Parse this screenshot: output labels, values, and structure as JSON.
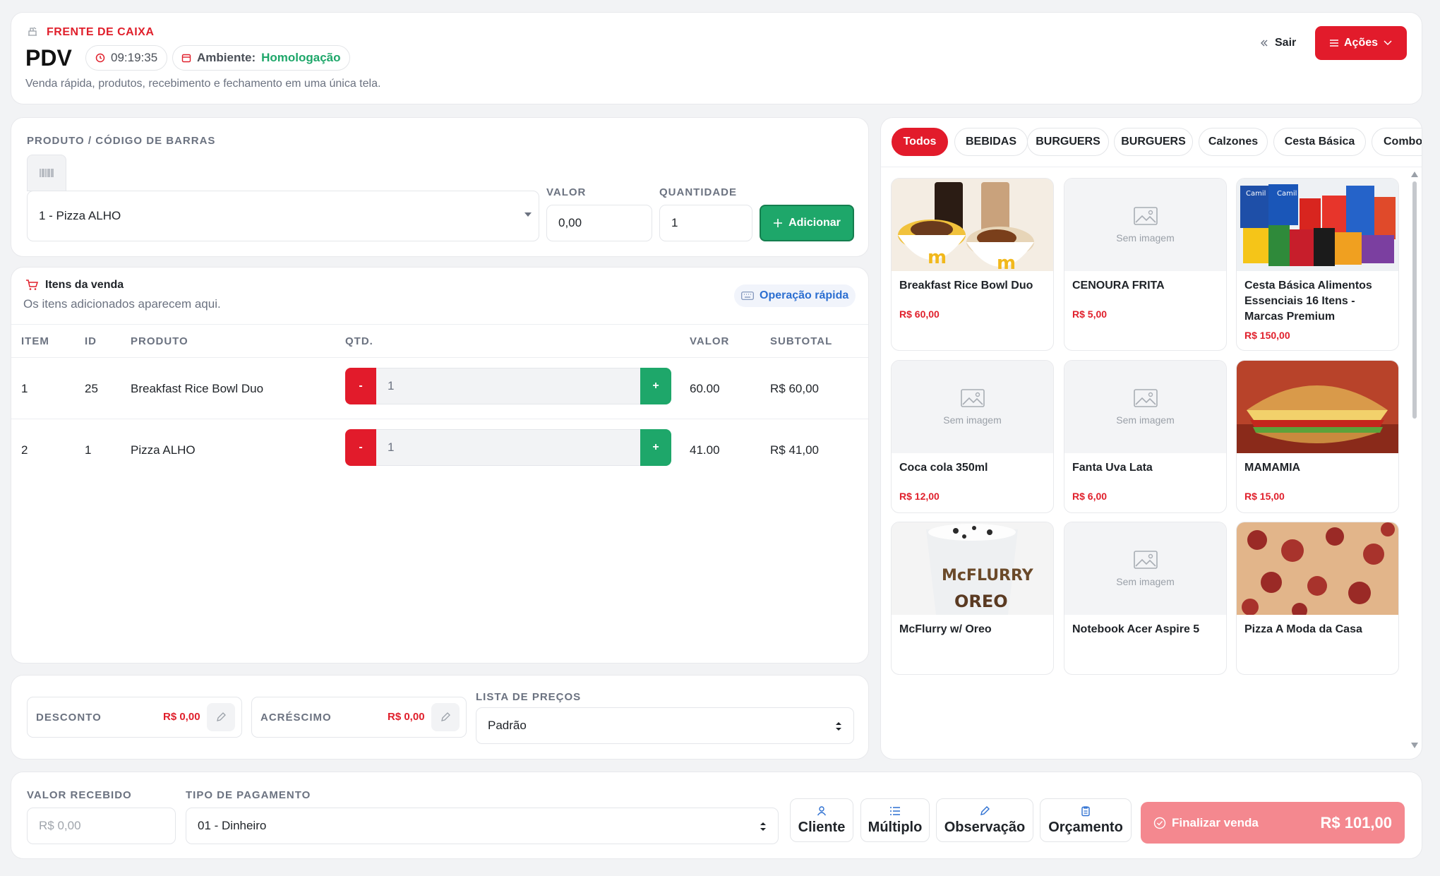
{
  "header": {
    "section_label": "FRENTE DE CAIXA",
    "title": "PDV",
    "clock": "09:19:35",
    "env_label": "Ambiente:",
    "env_value": "Homologação",
    "subtitle": "Venda rápida, produtos, recebimento e fechamento em uma única tela.",
    "exit_label": "Sair",
    "actions_label": "Ações"
  },
  "product_form": {
    "product_label": "PRODUTO / CÓDIGO DE BARRAS",
    "product_value": "1 - Pizza ALHO",
    "value_label": "VALOR",
    "value_value": "0,00",
    "qty_label": "QUANTIDADE",
    "qty_value": "1",
    "add_label": "Adicionar"
  },
  "items": {
    "title": "Itens da venda",
    "subtitle": "Os itens adicionados aparecem aqui.",
    "quick_op": "Operação rápida",
    "headers": [
      "ITEM",
      "ID",
      "PRODUTO",
      "QTD.",
      "VALOR",
      "SUBTOTAL"
    ],
    "rows": [
      {
        "item": "1",
        "id": "25",
        "product": "Breakfast Rice Bowl Duo",
        "qty": "1",
        "value": "60.00",
        "subtotal": "R$ 60,00"
      },
      {
        "item": "2",
        "id": "1",
        "product": "Pizza ALHO",
        "qty": "1",
        "value": "41.00",
        "subtotal": "R$ 41,00"
      }
    ],
    "minus": "-",
    "plus": "+"
  },
  "adjust": {
    "discount_label": "DESCONTO",
    "discount_value": "R$ 0,00",
    "surcharge_label": "ACRÉSCIMO",
    "surcharge_value": "R$ 0,00",
    "pricelist_label": "LISTA DE PREÇOS",
    "pricelist_value": "Padrão"
  },
  "categories": [
    "Todos",
    "BEBIDAS",
    "BURGUERS",
    "BURGUERS",
    "Calzones",
    "Cesta Básica",
    "Combo"
  ],
  "products": [
    {
      "name": "Breakfast Rice Bowl Duo",
      "price": "R$ 60,00",
      "has_image": true
    },
    {
      "name": "CENOURA FRITA",
      "price": "R$ 5,00",
      "has_image": false
    },
    {
      "name": "Cesta Básica Alimentos Essenciais 16 Itens - Marcas Premium",
      "price": "R$ 150,00",
      "has_image": true
    },
    {
      "name": "Coca cola 350ml",
      "price": "R$ 12,00",
      "has_image": false
    },
    {
      "name": "Fanta Uva Lata",
      "price": "R$ 6,00",
      "has_image": false
    },
    {
      "name": "MAMAMIA",
      "price": "R$ 15,00",
      "has_image": true
    },
    {
      "name": "McFlurry w/ Oreo",
      "price": "",
      "has_image": true
    },
    {
      "name": "Notebook Acer Aspire 5",
      "price": "",
      "has_image": false
    },
    {
      "name": "Pizza A Moda da Casa",
      "price": "",
      "has_image": true
    }
  ],
  "no_image_label": "Sem imagem",
  "payment": {
    "received_label": "VALOR RECEBIDO",
    "received_placeholder": "R$ 0,00",
    "type_label": "TIPO DE PAGAMENTO",
    "type_value": "01 - Dinheiro",
    "client_label": "Cliente",
    "multiple_label": "Múltiplo",
    "note_label": "Observação",
    "quote_label": "Orçamento",
    "finish_label": "Finalizar venda",
    "total": "R$ 101,00"
  },
  "colors": {
    "accent_red": "#e21b2b",
    "green": "#1ea76a",
    "finish_bg": "#f4888f"
  }
}
